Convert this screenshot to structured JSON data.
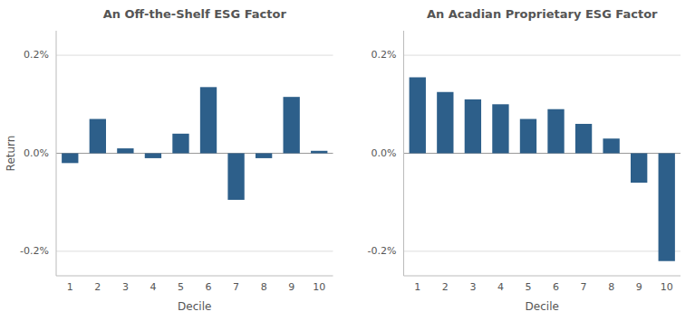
{
  "chart_data": [
    {
      "type": "bar",
      "title": "An Off-the-Shelf ESG Factor",
      "xlabel": "Decile",
      "ylabel": "Return",
      "categories": [
        1,
        2,
        3,
        4,
        5,
        6,
        7,
        8,
        9,
        10
      ],
      "values": [
        -0.0002,
        0.0007,
        0.0001,
        -0.0001,
        0.0004,
        0.00135,
        -0.00095,
        -0.0001,
        0.00115,
        5e-05
      ],
      "color": "#2d5f8a",
      "ylim": [
        -0.0025,
        0.0025
      ],
      "yticks": [
        {
          "value": -0.002,
          "label": "-0.2%"
        },
        {
          "value": 0.0,
          "label": "0.0%"
        },
        {
          "value": 0.002,
          "label": "0.2%"
        }
      ],
      "grid": true
    },
    {
      "type": "bar",
      "title": "An Acadian Proprietary ESG Factor",
      "xlabel": "Decile",
      "categories": [
        1,
        2,
        3,
        4,
        5,
        6,
        7,
        8,
        9,
        10
      ],
      "values": [
        0.00155,
        0.00125,
        0.0011,
        0.001,
        0.0007,
        0.0009,
        0.0006,
        0.0003,
        -0.0006,
        -0.0022
      ],
      "color": "#2d5f8a",
      "ylim": [
        -0.0025,
        0.0025
      ],
      "yticks": [
        {
          "value": -0.002,
          "label": "-0.2%"
        },
        {
          "value": 0.0,
          "label": "0.0%"
        },
        {
          "value": 0.002,
          "label": "0.2%"
        }
      ],
      "grid": true
    }
  ]
}
